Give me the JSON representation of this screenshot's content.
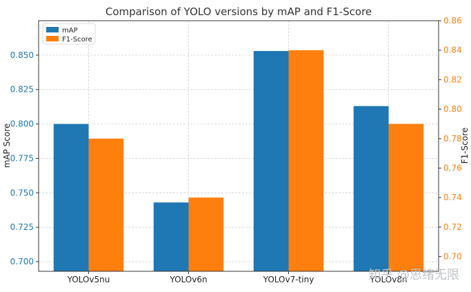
{
  "chart_data": {
    "type": "bar",
    "title": "Comparison of YOLO versions by mAP and F1-Score",
    "categories": [
      "YOLOv5nu",
      "YOLOv6n",
      "YOLOv7-tiny",
      "YOLOv8n"
    ],
    "series": [
      {
        "name": "mAP",
        "axis": "left",
        "color": "#1f77b4",
        "values": [
          0.8,
          0.743,
          0.853,
          0.813
        ]
      },
      {
        "name": "F1-Score",
        "axis": "right",
        "color": "#ff7f0e",
        "values": [
          0.78,
          0.74,
          0.84,
          0.79
        ]
      }
    ],
    "ylabel_left": "mAP Score",
    "ylabel_right": "F1-Score",
    "ylim_left": [
      0.693,
      0.875
    ],
    "ylim_right": [
      0.69,
      0.86
    ],
    "yticks_left": [
      "0.700",
      "0.725",
      "0.750",
      "0.775",
      "0.800",
      "0.825",
      "0.850"
    ],
    "yticks_left_values": [
      0.7,
      0.725,
      0.75,
      0.775,
      0.8,
      0.825,
      0.85
    ],
    "yticks_right": [
      "0.70",
      "0.72",
      "0.74",
      "0.76",
      "0.78",
      "0.80",
      "0.82",
      "0.84",
      "0.86"
    ],
    "yticks_right_values": [
      0.7,
      0.72,
      0.74,
      0.76,
      0.78,
      0.8,
      0.82,
      0.84,
      0.86
    ],
    "left_axis_color": "#1f77b4",
    "right_axis_color": "#ff7f0e",
    "grid": true,
    "legend_position": "top-left"
  },
  "watermark": "知乎 @思绪无限"
}
